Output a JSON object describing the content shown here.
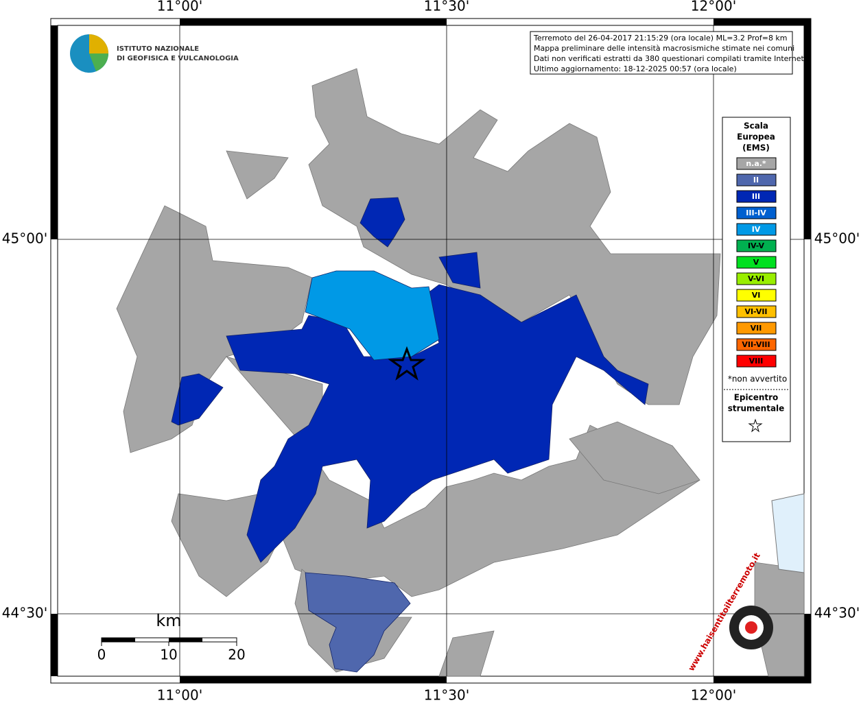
{
  "axes": {
    "top": [
      "11°00'",
      "11°30'",
      "12°00'"
    ],
    "bottom": [
      "11°00'",
      "11°30'",
      "12°00'"
    ],
    "left": [
      "45°00'",
      "44°30'"
    ],
    "right": [
      "45°00'",
      "44°30'"
    ]
  },
  "logo": {
    "line1": "ISTITUTO NAZIONALE",
    "line2": "DI GEOFISICA E VULCANOLOGIA"
  },
  "info": [
    "Terremoto del 26-04-2017 21:15:29 (ora locale) ML=3.2 Prof=8 km",
    "Mappa preliminare delle intensità macrosismiche stimate nei comuni",
    "Dati non verificati estratti da 380 questionari compilati tramite Internet.",
    "Ultimo aggiornamento: 18-12-2025 00:57 (ora locale)"
  ],
  "legend": {
    "title": [
      "Scala",
      "Europea",
      "(EMS)"
    ],
    "items": [
      {
        "label": "n.a.*",
        "color": "#a6a6a6",
        "text": "#fff"
      },
      {
        "label": "II",
        "color": "#4f67ad",
        "text": "#fff"
      },
      {
        "label": "III",
        "color": "#0027b4",
        "text": "#fff"
      },
      {
        "label": "III-IV",
        "color": "#0060d0",
        "text": "#fff"
      },
      {
        "label": "IV",
        "color": "#0099e6",
        "text": "#fff"
      },
      {
        "label": "IV-V",
        "color": "#00b050",
        "text": "#000"
      },
      {
        "label": "V",
        "color": "#00e020",
        "text": "#000"
      },
      {
        "label": "V-VI",
        "color": "#99ee00",
        "text": "#000"
      },
      {
        "label": "VI",
        "color": "#ffff00",
        "text": "#000"
      },
      {
        "label": "VI-VII",
        "color": "#ffc000",
        "text": "#000"
      },
      {
        "label": "VII",
        "color": "#ff9900",
        "text": "#000"
      },
      {
        "label": "VII-VIII",
        "color": "#ff6600",
        "text": "#000"
      },
      {
        "label": "VIII",
        "color": "#ff0000",
        "text": "#000"
      }
    ],
    "note": "*non avvertito",
    "epicentre": [
      "Epicentro",
      "strumentale"
    ]
  },
  "scale": {
    "unit": "km",
    "labels": [
      "0",
      "10",
      "20"
    ]
  },
  "site": "www.haisentitoilterremoto.it"
}
